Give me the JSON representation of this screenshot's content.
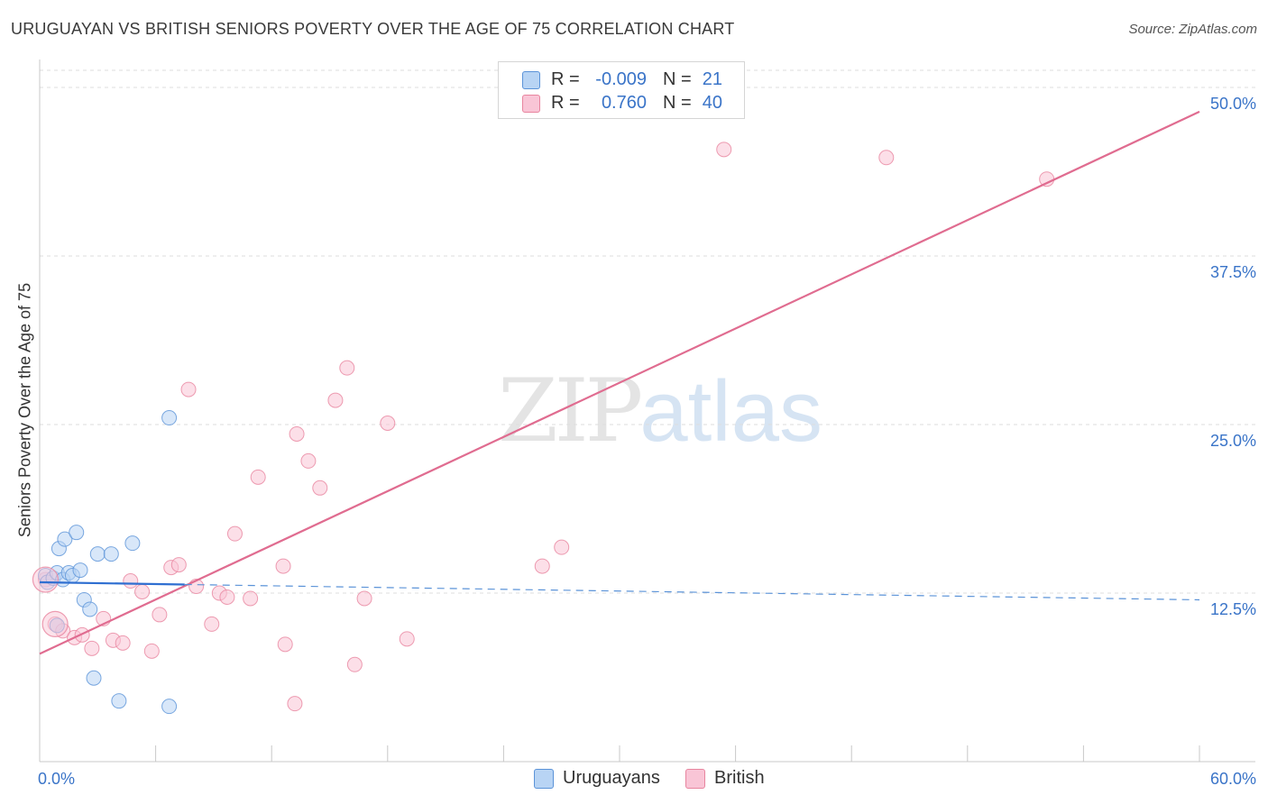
{
  "title": "URUGUAYAN VS BRITISH SENIORS POVERTY OVER THE AGE OF 75 CORRELATION CHART",
  "source": "Source: ZipAtlas.com",
  "watermark": {
    "zip": "ZIP",
    "atlas": "atlas"
  },
  "legend": {
    "rows": [
      {
        "r_label": "R =",
        "r_value": "-0.009",
        "n_label": "N =",
        "n_value": "21",
        "color": "#b8d4f4",
        "border": "#5b93d8"
      },
      {
        "r_label": "R =",
        "r_value": "0.760",
        "n_label": "N =",
        "n_value": "40",
        "color": "#f9c5d6",
        "border": "#e8859f"
      }
    ]
  },
  "bottom_legend": [
    {
      "label": "Uruguayans",
      "color": "#b8d4f4",
      "border": "#5b93d8"
    },
    {
      "label": "British",
      "color": "#f9c5d6",
      "border": "#e8859f"
    }
  ],
  "chart_data": {
    "type": "scatter",
    "title": "URUGUAYAN VS BRITISH SENIORS POVERTY OVER THE AGE OF 75 CORRELATION CHART",
    "xlabel": "",
    "ylabel": "Seniors Poverty Over the Age of 75",
    "xlim": [
      0,
      60
    ],
    "ylim": [
      0,
      50
    ],
    "x_tick_labels": [
      {
        "value": 0,
        "label": "0.0%"
      },
      {
        "value": 60,
        "label": "60.0%"
      }
    ],
    "y_tick_labels": [
      {
        "value": 12.5,
        "label": "12.5%"
      },
      {
        "value": 25,
        "label": "25.0%"
      },
      {
        "value": 37.5,
        "label": "37.5%"
      },
      {
        "value": 50,
        "label": "50.0%"
      }
    ],
    "grid": "horizontal dashed",
    "series": [
      {
        "name": "Uruguayans",
        "color": "#5b93d8",
        "fill": "#b8d4f4",
        "points": [
          [
            0.3,
            13.8
          ],
          [
            0.4,
            13.3
          ],
          [
            0.7,
            13.6
          ],
          [
            0.9,
            14.0
          ],
          [
            1.0,
            15.8
          ],
          [
            1.2,
            13.5
          ],
          [
            1.3,
            16.5
          ],
          [
            1.5,
            14.0
          ],
          [
            1.7,
            13.8
          ],
          [
            1.9,
            17.0
          ],
          [
            2.1,
            14.2
          ],
          [
            2.3,
            12.0
          ],
          [
            2.6,
            11.3
          ],
          [
            2.8,
            6.2
          ],
          [
            3.0,
            15.4
          ],
          [
            3.7,
            15.4
          ],
          [
            4.1,
            4.5
          ],
          [
            4.8,
            16.2
          ],
          [
            6.7,
            25.5
          ],
          [
            6.7,
            4.1
          ],
          [
            0.9,
            10.1
          ]
        ],
        "trend": {
          "x0": 0,
          "y0": 13.3,
          "x1": 60,
          "y1": 12.0,
          "solid_until_x": 7.5
        }
      },
      {
        "name": "British",
        "color": "#e8859f",
        "fill": "#f9c5d6",
        "points": [
          [
            0.3,
            13.5
          ],
          [
            0.8,
            10.2
          ],
          [
            1.2,
            9.7
          ],
          [
            1.8,
            9.2
          ],
          [
            2.2,
            9.4
          ],
          [
            2.7,
            8.4
          ],
          [
            3.3,
            10.6
          ],
          [
            3.8,
            9.0
          ],
          [
            4.3,
            8.8
          ],
          [
            4.7,
            13.4
          ],
          [
            5.3,
            12.6
          ],
          [
            5.8,
            8.2
          ],
          [
            6.2,
            10.9
          ],
          [
            6.8,
            14.4
          ],
          [
            7.2,
            14.6
          ],
          [
            7.7,
            27.6
          ],
          [
            8.1,
            13.0
          ],
          [
            8.9,
            10.2
          ],
          [
            9.3,
            12.5
          ],
          [
            9.7,
            12.2
          ],
          [
            10.1,
            16.9
          ],
          [
            10.9,
            12.1
          ],
          [
            11.3,
            21.1
          ],
          [
            12.6,
            14.5
          ],
          [
            12.7,
            8.7
          ],
          [
            13.2,
            4.3
          ],
          [
            13.3,
            24.3
          ],
          [
            13.9,
            22.3
          ],
          [
            14.5,
            20.3
          ],
          [
            15.3,
            26.8
          ],
          [
            15.9,
            29.2
          ],
          [
            16.3,
            7.2
          ],
          [
            16.8,
            12.1
          ],
          [
            18.0,
            25.1
          ],
          [
            19.0,
            9.1
          ],
          [
            26.0,
            14.5
          ],
          [
            27.0,
            15.9
          ],
          [
            35.4,
            45.4
          ],
          [
            43.8,
            44.8
          ],
          [
            52.1,
            43.2
          ]
        ],
        "trend": {
          "x0": 0,
          "y0": 8.0,
          "x1": 60,
          "y1": 48.2
        }
      }
    ],
    "big_markers": [
      {
        "series": "British",
        "x": 0.3,
        "y": 13.5
      },
      {
        "series": "British",
        "x": 0.8,
        "y": 10.2
      }
    ]
  }
}
